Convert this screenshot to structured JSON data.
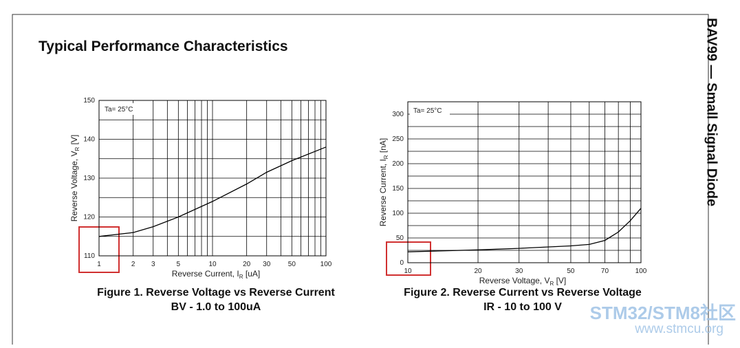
{
  "header": {
    "title": "Typical Performance Characteristics",
    "side_title": "BAV99 — Small Signal Diode"
  },
  "watermark": {
    "brand": "STM32/STM8社区",
    "url": "www.stmcu.org"
  },
  "chart_data": [
    {
      "type": "line",
      "log_x": true,
      "annotation": "Ta= 25°C",
      "xlabel": [
        "Reverse Current, I",
        "R",
        " [uA]"
      ],
      "ylabel": [
        "Reverse Voltage, V",
        "R",
        " [V]"
      ],
      "caption": [
        "Figure 1. Reverse Voltage vs Reverse Current",
        "BV - 1.0 to 100uA"
      ],
      "xlim": [
        1,
        100
      ],
      "xticks": [
        1,
        2,
        3,
        5,
        10,
        20,
        30,
        50,
        100
      ],
      "xminor": [
        4,
        6,
        7,
        8,
        9,
        40,
        60,
        70,
        80,
        90
      ],
      "ylim": [
        110,
        150
      ],
      "yticks": [
        110,
        120,
        130,
        140,
        150
      ],
      "yminor": [
        115,
        125,
        135,
        145
      ],
      "x": [
        1,
        2,
        3,
        5,
        10,
        20,
        30,
        50,
        100
      ],
      "values": [
        115,
        116,
        117.5,
        120,
        124,
        128.5,
        131.5,
        134.5,
        138
      ],
      "color": "#000000"
    },
    {
      "type": "line",
      "log_x": true,
      "annotation": "Ta= 25°C",
      "xlabel": [
        "Reverse Voltage, V",
        "R",
        " [V]"
      ],
      "ylabel": [
        "Reverse Current, I",
        "R",
        " [nA]"
      ],
      "caption": [
        "Figure 2. Reverse Current vs Reverse Voltage",
        "IR - 10 to 100 V"
      ],
      "xlim": [
        10,
        100
      ],
      "xticks": [
        10,
        20,
        30,
        50,
        70,
        100
      ],
      "xminor": [
        40,
        60,
        80,
        90
      ],
      "ylim": [
        0,
        325
      ],
      "yticks": [
        0,
        50,
        100,
        150,
        200,
        250,
        300
      ],
      "yminor": [
        25,
        75,
        125,
        175,
        225,
        275
      ],
      "x": [
        10,
        20,
        30,
        50,
        60,
        70,
        80,
        90,
        100
      ],
      "values": [
        22,
        26,
        29,
        34,
        37,
        45,
        62,
        85,
        110
      ],
      "color": "#000000"
    }
  ]
}
